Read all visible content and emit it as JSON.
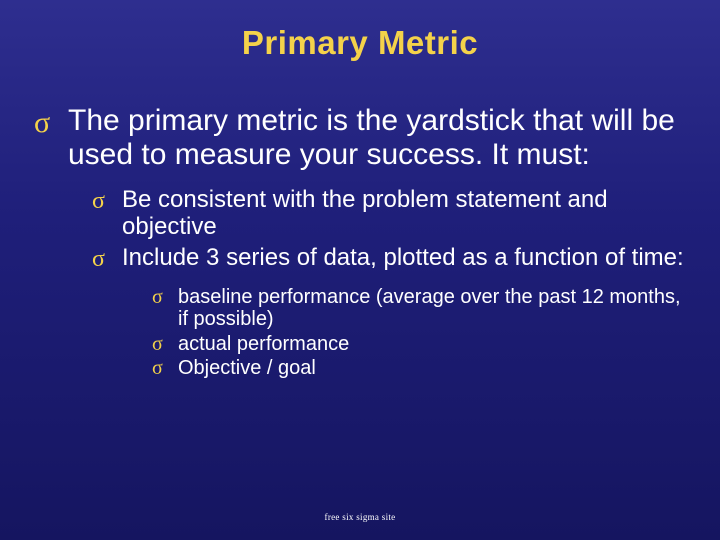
{
  "slide": {
    "title": "Primary Metric",
    "footer": "free six sigma site",
    "background_gradient": [
      "#2e2e8f",
      "#1f1f7a",
      "#151560"
    ],
    "title_color": "#f4d24a",
    "bullet_color": "#f4d24a",
    "text_color": "#ffffff",
    "bullet_glyph": "σ",
    "fonts": {
      "title": {
        "family": "Arial",
        "weight": "bold",
        "size_pt": 33
      },
      "l1": {
        "family": "Arial",
        "size_pt": 30
      },
      "l2": {
        "family": "Arial",
        "size_pt": 24
      },
      "l3": {
        "family": "Arial",
        "size_pt": 20
      },
      "footer": {
        "family": "Times New Roman",
        "size_pt": 9
      }
    },
    "bullets": {
      "l1_0": "The primary metric is the yardstick that will be used to measure your success. It must:",
      "l2_0": "Be consistent with the problem statement and objective",
      "l2_1": "Include 3 series of data, plotted as a function of time:",
      "l3_0": "baseline performance (average over the past 12 months, if possible)",
      "l3_1": "actual performance",
      "l3_2": "Objective / goal"
    }
  }
}
